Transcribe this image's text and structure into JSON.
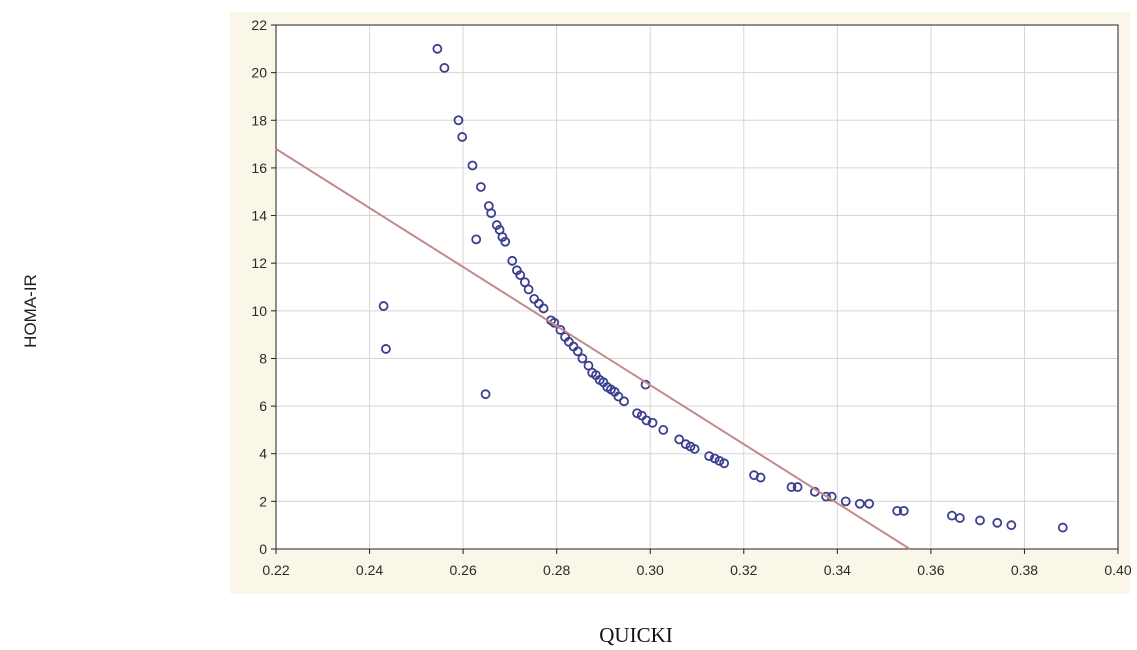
{
  "chart_data": {
    "type": "scatter",
    "xlabel": "QUICKI",
    "ylabel": "HOMA-IR",
    "xlim": [
      0.22,
      0.4
    ],
    "ylim": [
      0,
      22
    ],
    "x_ticks": [
      "0.22",
      "0.24",
      "0.26",
      "0.28",
      "0.30",
      "0.32",
      "0.34",
      "0.36",
      "0.38",
      "0.40"
    ],
    "y_ticks": [
      "0",
      "2",
      "4",
      "6",
      "8",
      "10",
      "12",
      "14",
      "16",
      "18",
      "20",
      "22"
    ],
    "grid": true,
    "colors": {
      "plot_background": "#ffffff",
      "outer_background": "#fbf7e8",
      "grid": "#d6d6d6",
      "points": "#3b3f8e",
      "fit_line": "#c48a8a"
    },
    "series": [
      {
        "points": [
          {
            "x": 0.243,
            "y": 10.2
          },
          {
            "x": 0.2435,
            "y": 8.4
          },
          {
            "x": 0.2545,
            "y": 21.0
          },
          {
            "x": 0.256,
            "y": 20.2
          },
          {
            "x": 0.259,
            "y": 18.0
          },
          {
            "x": 0.2598,
            "y": 17.3
          },
          {
            "x": 0.262,
            "y": 16.1
          },
          {
            "x": 0.2628,
            "y": 13.0
          },
          {
            "x": 0.2638,
            "y": 15.2
          },
          {
            "x": 0.2648,
            "y": 6.5
          },
          {
            "x": 0.2655,
            "y": 14.4
          },
          {
            "x": 0.266,
            "y": 14.1
          },
          {
            "x": 0.2672,
            "y": 13.6
          },
          {
            "x": 0.2678,
            "y": 13.4
          },
          {
            "x": 0.2684,
            "y": 13.1
          },
          {
            "x": 0.269,
            "y": 12.9
          },
          {
            "x": 0.2705,
            "y": 12.1
          },
          {
            "x": 0.2715,
            "y": 11.7
          },
          {
            "x": 0.2722,
            "y": 11.5
          },
          {
            "x": 0.2732,
            "y": 11.2
          },
          {
            "x": 0.274,
            "y": 10.9
          },
          {
            "x": 0.2752,
            "y": 10.5
          },
          {
            "x": 0.2762,
            "y": 10.3
          },
          {
            "x": 0.2772,
            "y": 10.1
          },
          {
            "x": 0.2788,
            "y": 9.6
          },
          {
            "x": 0.2795,
            "y": 9.5
          },
          {
            "x": 0.2808,
            "y": 9.2
          },
          {
            "x": 0.2818,
            "y": 8.9
          },
          {
            "x": 0.2826,
            "y": 8.7
          },
          {
            "x": 0.2836,
            "y": 8.5
          },
          {
            "x": 0.2845,
            "y": 8.3
          },
          {
            "x": 0.2855,
            "y": 8.0
          },
          {
            "x": 0.2868,
            "y": 7.7
          },
          {
            "x": 0.2876,
            "y": 7.4
          },
          {
            "x": 0.2884,
            "y": 7.3
          },
          {
            "x": 0.2892,
            "y": 7.1
          },
          {
            "x": 0.29,
            "y": 7.0
          },
          {
            "x": 0.2908,
            "y": 6.8
          },
          {
            "x": 0.2916,
            "y": 6.7
          },
          {
            "x": 0.2924,
            "y": 6.6
          },
          {
            "x": 0.2932,
            "y": 6.4
          },
          {
            "x": 0.2944,
            "y": 6.2
          },
          {
            "x": 0.2972,
            "y": 5.7
          },
          {
            "x": 0.2982,
            "y": 5.6
          },
          {
            "x": 0.299,
            "y": 6.9
          },
          {
            "x": 0.2992,
            "y": 5.4
          },
          {
            "x": 0.3005,
            "y": 5.3
          },
          {
            "x": 0.3028,
            "y": 5.0
          },
          {
            "x": 0.3062,
            "y": 4.6
          },
          {
            "x": 0.3076,
            "y": 4.4
          },
          {
            "x": 0.3086,
            "y": 4.3
          },
          {
            "x": 0.3095,
            "y": 4.2
          },
          {
            "x": 0.3126,
            "y": 3.9
          },
          {
            "x": 0.3138,
            "y": 3.8
          },
          {
            "x": 0.3148,
            "y": 3.7
          },
          {
            "x": 0.3158,
            "y": 3.6
          },
          {
            "x": 0.3222,
            "y": 3.1
          },
          {
            "x": 0.3236,
            "y": 3.0
          },
          {
            "x": 0.3302,
            "y": 2.6
          },
          {
            "x": 0.3315,
            "y": 2.6
          },
          {
            "x": 0.3352,
            "y": 2.4
          },
          {
            "x": 0.3376,
            "y": 2.2
          },
          {
            "x": 0.3388,
            "y": 2.2
          },
          {
            "x": 0.3418,
            "y": 2.0
          },
          {
            "x": 0.3448,
            "y": 1.9
          },
          {
            "x": 0.3468,
            "y": 1.9
          },
          {
            "x": 0.3528,
            "y": 1.6
          },
          {
            "x": 0.3542,
            "y": 1.6
          },
          {
            "x": 0.3645,
            "y": 1.4
          },
          {
            "x": 0.3662,
            "y": 1.3
          },
          {
            "x": 0.3705,
            "y": 1.2
          },
          {
            "x": 0.3742,
            "y": 1.1
          },
          {
            "x": 0.3772,
            "y": 1.0
          },
          {
            "x": 0.3882,
            "y": 0.9
          }
        ]
      }
    ],
    "fit_line": {
      "x": [
        0.22,
        0.3555
      ],
      "y": [
        16.8,
        0.0
      ]
    }
  }
}
